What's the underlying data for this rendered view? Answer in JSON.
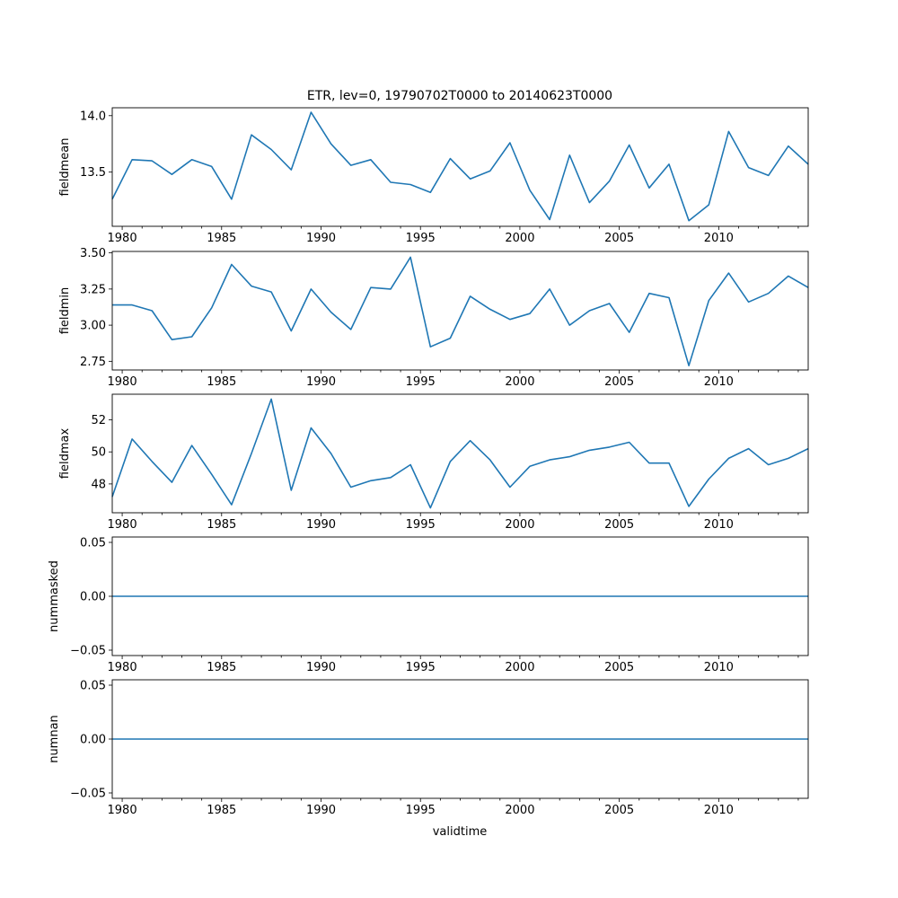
{
  "title": "ETR, lev=0, 19790702T0000 to 20140623T0000",
  "xlabel": "validtime",
  "colors": {
    "line": "#1f77b4",
    "axes": "#000000"
  },
  "chart_data": [
    {
      "type": "line",
      "ylabel": "fieldmean",
      "x": [
        1979.5,
        1980.5,
        1981.5,
        1982.5,
        1983.5,
        1984.5,
        1985.5,
        1986.5,
        1987.5,
        1988.5,
        1989.5,
        1990.5,
        1991.5,
        1992.5,
        1993.5,
        1994.5,
        1995.5,
        1996.5,
        1997.5,
        1998.5,
        1999.5,
        2000.5,
        2001.5,
        2002.5,
        2003.5,
        2004.5,
        2005.5,
        2006.5,
        2007.5,
        2008.5,
        2009.5,
        2010.5,
        2011.5,
        2012.5,
        2013.5,
        2014.5
      ],
      "values": [
        13.26,
        13.61,
        13.6,
        13.48,
        13.61,
        13.55,
        13.26,
        13.83,
        13.7,
        13.52,
        14.03,
        13.75,
        13.56,
        13.61,
        13.41,
        13.39,
        13.32,
        13.62,
        13.44,
        13.51,
        13.76,
        13.34,
        13.08,
        13.65,
        13.23,
        13.42,
        13.74,
        13.36,
        13.57,
        13.07,
        13.21,
        13.86,
        13.54,
        13.47,
        13.73,
        13.57
      ],
      "xlim": [
        1979.5,
        2014.5
      ],
      "ylim": [
        13.02,
        14.07
      ],
      "xticks": [
        1980,
        1985,
        1990,
        1995,
        2000,
        2005,
        2010
      ],
      "yticks": [
        13.5,
        14.0
      ],
      "ytick_labels": [
        "13.5",
        "14.0"
      ]
    },
    {
      "type": "line",
      "ylabel": "fieldmin",
      "x": [
        1979.5,
        1980.5,
        1981.5,
        1982.5,
        1983.5,
        1984.5,
        1985.5,
        1986.5,
        1987.5,
        1988.5,
        1989.5,
        1990.5,
        1991.5,
        1992.5,
        1993.5,
        1994.5,
        1995.5,
        1996.5,
        1997.5,
        1998.5,
        1999.5,
        2000.5,
        2001.5,
        2002.5,
        2003.5,
        2004.5,
        2005.5,
        2006.5,
        2007.5,
        2008.5,
        2009.5,
        2010.5,
        2011.5,
        2012.5,
        2013.5,
        2014.5
      ],
      "values": [
        3.14,
        3.14,
        3.1,
        2.9,
        2.92,
        3.12,
        3.42,
        3.27,
        3.23,
        2.96,
        3.25,
        3.09,
        2.97,
        3.26,
        3.25,
        3.47,
        2.85,
        2.91,
        3.2,
        3.11,
        3.04,
        3.08,
        3.25,
        3.0,
        3.1,
        3.15,
        2.95,
        3.22,
        3.19,
        2.72,
        3.17,
        3.36,
        3.16,
        3.22,
        3.34,
        3.26
      ],
      "xlim": [
        1979.5,
        2014.5
      ],
      "ylim": [
        2.69,
        3.51
      ],
      "xticks": [
        1980,
        1985,
        1990,
        1995,
        2000,
        2005,
        2010
      ],
      "yticks": [
        2.75,
        3.0,
        3.25,
        3.5
      ],
      "ytick_labels": [
        "2.75",
        "3.00",
        "3.25",
        "3.50"
      ]
    },
    {
      "type": "line",
      "ylabel": "fieldmax",
      "x": [
        1979.5,
        1980.5,
        1981.5,
        1982.5,
        1983.5,
        1984.5,
        1985.5,
        1986.5,
        1987.5,
        1988.5,
        1989.5,
        1990.5,
        1991.5,
        1992.5,
        1993.5,
        1994.5,
        1995.5,
        1996.5,
        1997.5,
        1998.5,
        1999.5,
        2000.5,
        2001.5,
        2002.5,
        2003.5,
        2004.5,
        2005.5,
        2006.5,
        2007.5,
        2008.5,
        2009.5,
        2010.5,
        2011.5,
        2012.5,
        2013.5,
        2014.5
      ],
      "values": [
        47.2,
        50.8,
        49.4,
        48.1,
        50.4,
        48.6,
        46.7,
        49.9,
        53.3,
        47.6,
        51.5,
        49.9,
        47.8,
        48.2,
        48.4,
        49.2,
        46.5,
        49.4,
        50.7,
        49.5,
        47.8,
        49.1,
        49.5,
        49.7,
        50.1,
        50.3,
        50.6,
        49.3,
        49.3,
        46.6,
        48.3,
        49.6,
        50.2,
        49.2,
        49.6,
        50.2
      ],
      "xlim": [
        1979.5,
        2014.5
      ],
      "ylim": [
        46.2,
        53.6
      ],
      "xticks": [
        1980,
        1985,
        1990,
        1995,
        2000,
        2005,
        2010
      ],
      "yticks": [
        48,
        50,
        52
      ],
      "ytick_labels": [
        "48",
        "50",
        "52"
      ]
    },
    {
      "type": "line",
      "ylabel": "nummasked",
      "x": [
        1979.5,
        2014.5
      ],
      "values": [
        0,
        0
      ],
      "xlim": [
        1979.5,
        2014.5
      ],
      "ylim": [
        -0.055,
        0.055
      ],
      "xticks": [
        1980,
        1985,
        1990,
        1995,
        2000,
        2005,
        2010
      ],
      "yticks": [
        -0.05,
        0.0,
        0.05
      ],
      "ytick_labels": [
        "−0.05",
        "0.00",
        "0.05"
      ]
    },
    {
      "type": "line",
      "ylabel": "numnan",
      "x": [
        1979.5,
        2014.5
      ],
      "values": [
        0,
        0
      ],
      "xlim": [
        1979.5,
        2014.5
      ],
      "ylim": [
        -0.055,
        0.055
      ],
      "xticks": [
        1980,
        1985,
        1990,
        1995,
        2000,
        2005,
        2010
      ],
      "yticks": [
        -0.05,
        0.0,
        0.05
      ],
      "ytick_labels": [
        "−0.05",
        "0.00",
        "0.05"
      ]
    }
  ]
}
